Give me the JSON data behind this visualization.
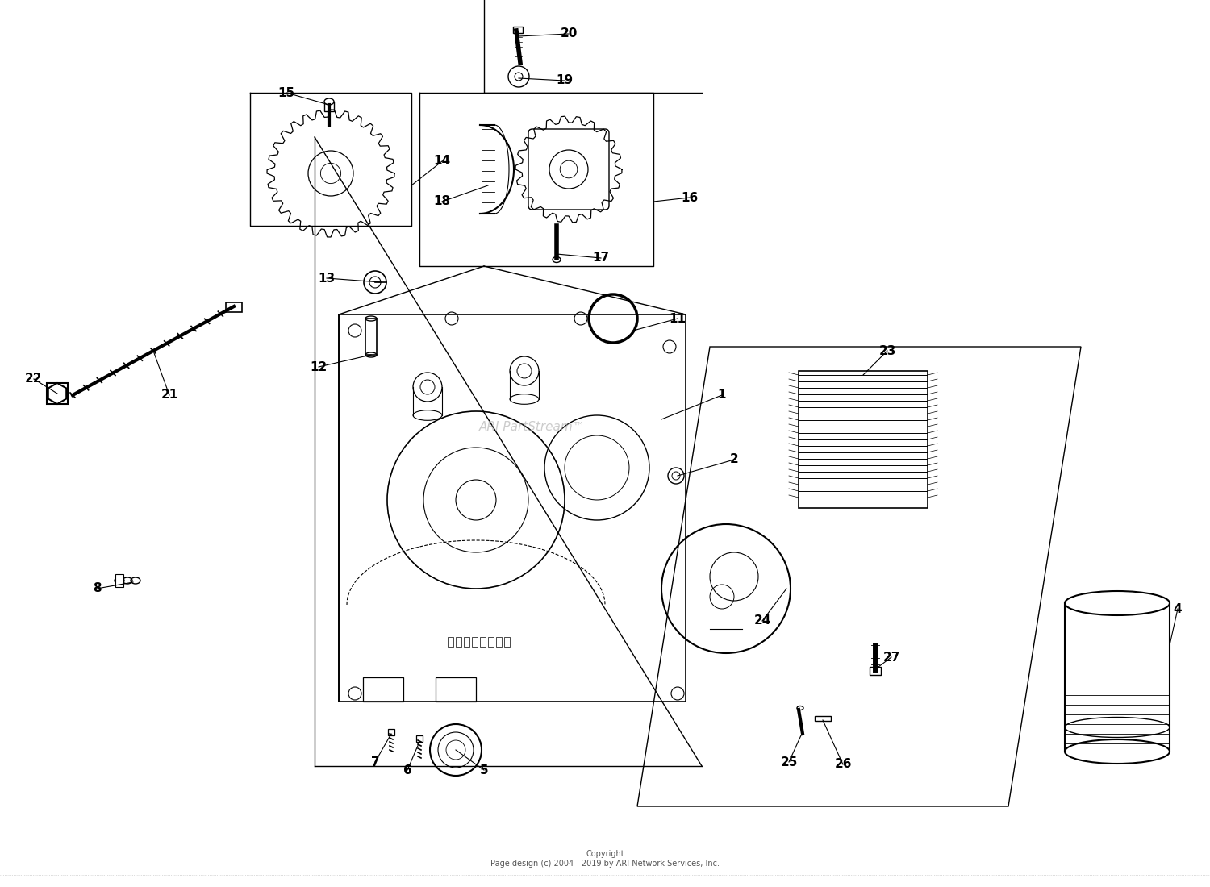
{
  "background_color": "#ffffff",
  "copyright_text": "Copyright\nPage design (c) 2004 - 2019 by ARI Network Services, Inc.",
  "watermark": "ARI PartStream™",
  "line_color": "#000000",
  "label_fontsize": 11,
  "fig_width": 15.0,
  "fig_height": 11.0,
  "dpi": 100
}
